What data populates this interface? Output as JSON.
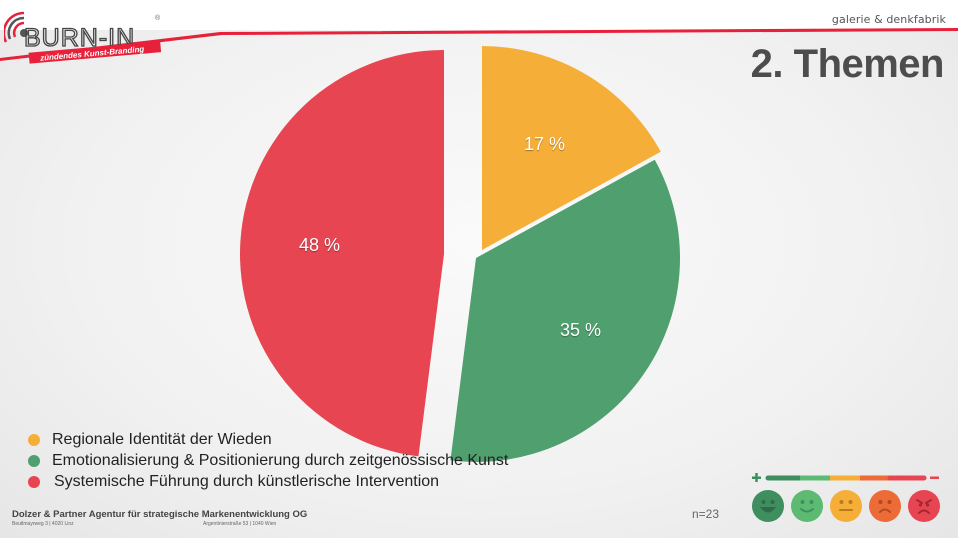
{
  "header": {
    "brand": "BURN-IN",
    "brand_registered": "®",
    "brand_tagline": "zündendes Kunst-Branding",
    "top_right_tagline": "galerie & denkfabrik",
    "accent_color": "#e8213b"
  },
  "page": {
    "title": "2. Themen"
  },
  "chart_data": {
    "type": "pie",
    "title": "2. Themen",
    "exploded": true,
    "start_angle_deg": 0,
    "direction": "clockwise",
    "categories": [
      "Regionale Identität der Wieden",
      "Emotionalisierung & Positionierung durch zeitgenössische Kunst",
      "Systemische Führung durch künstlerische Intervention"
    ],
    "values": [
      17,
      35,
      48
    ],
    "labels": [
      "17 %",
      "35 %",
      "48 %"
    ],
    "colors": [
      "#f5ae38",
      "#4f9f6f",
      "#e64551"
    ],
    "legend_position": "bottom-left"
  },
  "legend": {
    "items": [
      {
        "label": "Regionale Identität der Wieden",
        "color": "#f5ae38"
      },
      {
        "label": "Emotionalisierung & Positionierung durch zeitgenössische Kunst",
        "color": "#4f9f6f"
      },
      {
        "label": "Systemische Führung durch künstlerische Intervention",
        "color": "#e64551"
      }
    ]
  },
  "footer": {
    "company": "Dolzer & Partner Agentur für strategische Markenentwicklung OG",
    "address_linz": "Beutlmayrweg 3 | 4020 Linz",
    "address_wien": "Argentinierstraße 53 | 1040 Wien",
    "sample_size": "n=23"
  },
  "rating_scale": {
    "plus_symbol": "+",
    "minus_symbol": "−",
    "colors": [
      "#3f8e5f",
      "#5dba73",
      "#f5ae38",
      "#ec6b36",
      "#e64551"
    ],
    "icons": [
      "very-happy-face-icon",
      "happy-face-icon",
      "neutral-face-icon",
      "sad-face-icon",
      "angry-face-icon"
    ]
  }
}
